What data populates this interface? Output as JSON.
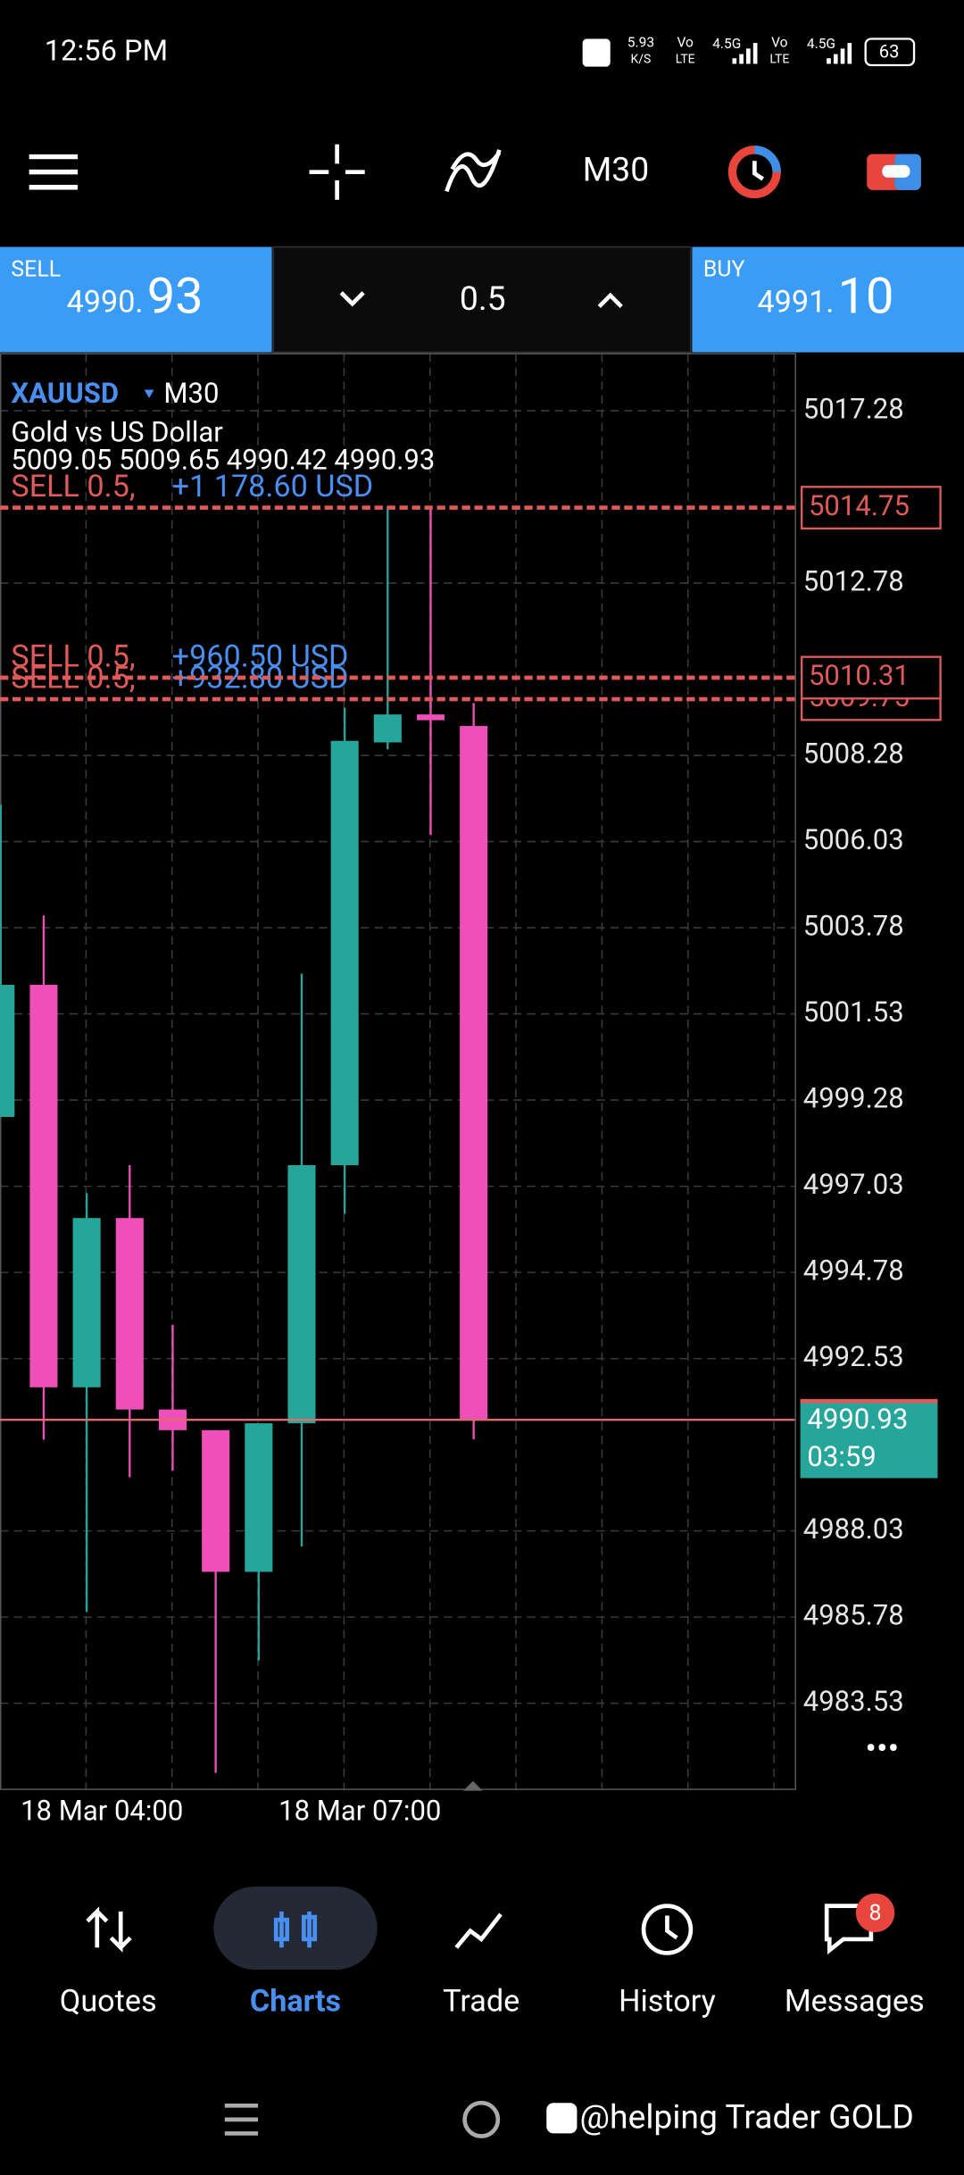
{
  "status_bar": {
    "time": "12:56 PM",
    "net_speed": "5.93",
    "net_unit": "K/S",
    "sims": [
      {
        "vo": "Vo",
        "lte": "LTE",
        "net": "4.5G"
      },
      {
        "vo": "Vo",
        "lte": "LTE",
        "net": "4.5G"
      }
    ],
    "battery": "63"
  },
  "toolbar": {
    "timeframe": "M30"
  },
  "trade_panel": {
    "sell_label": "SELL",
    "sell_price_main": "4990.",
    "sell_price_big": "93",
    "volume": "0.5",
    "buy_label": "BUY",
    "buy_price_main": "4991.",
    "buy_price_big": "10"
  },
  "chart_data": {
    "type": "candlestick",
    "symbol": "XAUUSD",
    "timeframe": "M30",
    "description": "Gold vs US Dollar",
    "ohlc_text": "5009.05 5009.65 4990.42 4990.93",
    "categories": [
      null,
      null,
      "18 Mar 04:00",
      null,
      null,
      null,
      null,
      null,
      "18 Mar 07:00",
      null,
      null,
      null
    ],
    "open": [
      4998.84,
      5002.29,
      4991.78,
      4996.2,
      4991.2,
      4990.66,
      4986.96,
      4990.84,
      4997.58,
      5008.62,
      5009.35,
      5009.05
    ],
    "high": [
      5006.99,
      5004.1,
      4996.85,
      4997.58,
      4993.41,
      4990.66,
      4990.84,
      5002.58,
      5009.53,
      5014.78,
      5014.78,
      5009.65
    ],
    "low": [
      4998.84,
      4990.41,
      4985.91,
      4989.43,
      4989.61,
      4981.71,
      4984.65,
      4987.62,
      4996.31,
      5008.44,
      5006.2,
      4990.42
    ],
    "close": [
      5002.29,
      4991.78,
      4996.2,
      4991.2,
      4990.66,
      4986.96,
      4990.84,
      4997.58,
      5008.66,
      5009.35,
      5009.2,
      4990.93
    ],
    "up_color": "#26a69a",
    "down_color": "#ef4fb8",
    "ylim": [
      4981.28,
      5018.77
    ],
    "yticks": [
      4983.53,
      4985.78,
      4988.03,
      4992.53,
      4994.78,
      4997.03,
      4999.28,
      5001.53,
      5003.78,
      5006.03,
      5008.28,
      5012.78,
      5017.28
    ],
    "grid": true,
    "orders": [
      {
        "label": "SELL 0.5,",
        "profit": "+1 178.60 USD",
        "price": 5014.75
      },
      {
        "label": "SELL 0.5,",
        "profit": "+960.50 USD",
        "price": 5010.31
      },
      {
        "label": "SELL 0.5,",
        "profit": "+932.80 USD",
        "price": 5009.75
      }
    ],
    "current_price": {
      "value": 4990.93,
      "countdown": "03:59"
    }
  },
  "nav": {
    "items": [
      "Quotes",
      "Charts",
      "Trade",
      "History",
      "Messages"
    ],
    "badge": "8"
  },
  "footer": {
    "watermark": "@helping Trader GOLD"
  }
}
